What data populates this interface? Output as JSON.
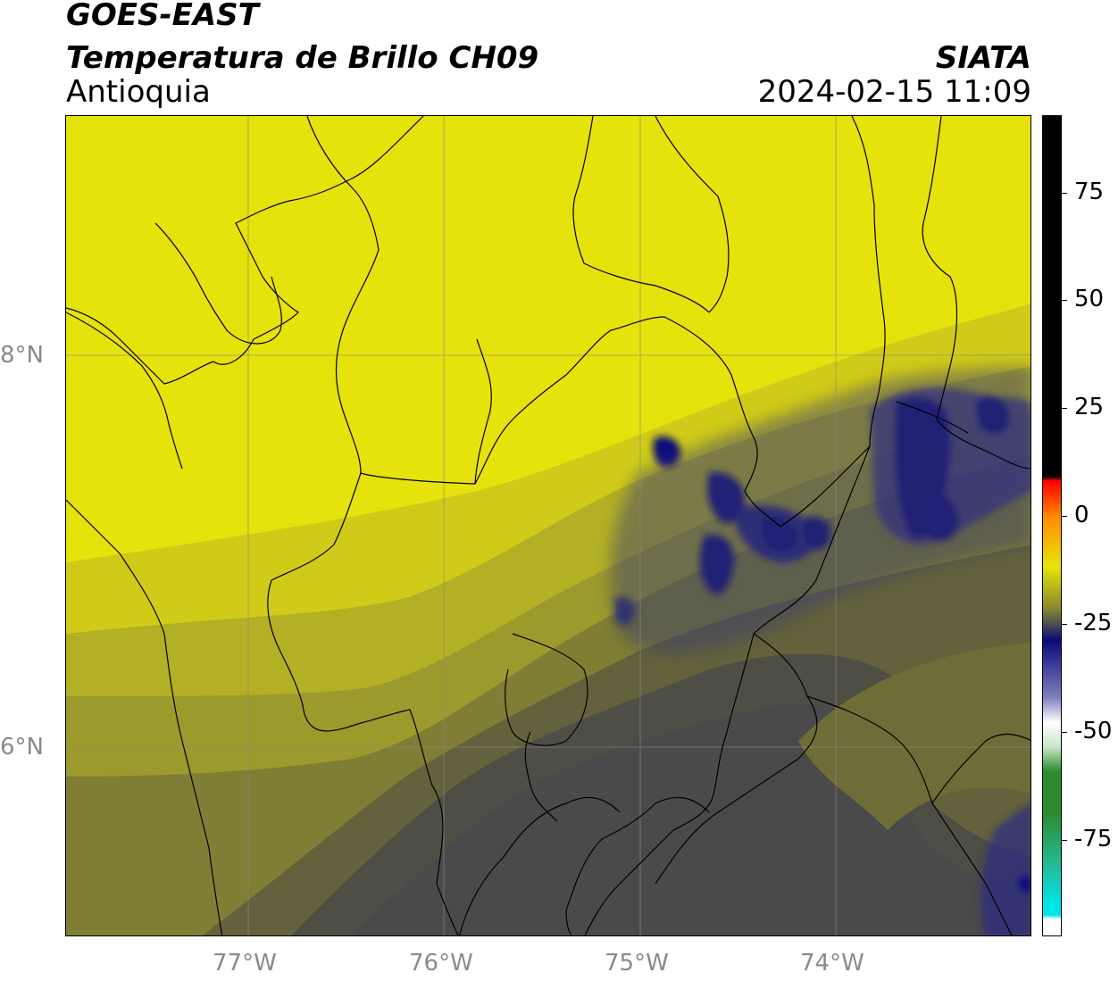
{
  "header": {
    "satellite": "GOES-EAST",
    "product": "Temperatura de Brillo CH09",
    "region": "Antioquia",
    "agency": "SIATA",
    "datetime": "2024-02-15 11:09"
  },
  "map": {
    "lon_ticks": [
      "77°W",
      "76°W",
      "75°W",
      "74°W"
    ],
    "lat_ticks": [
      "8°N",
      "6°N"
    ],
    "lon_range": [
      -77.93,
      -73.0
    ],
    "lat_range": [
      5.05,
      9.25
    ]
  },
  "colorbar": {
    "ticks": [
      "75",
      "50",
      "25",
      "0",
      "-25",
      "-50",
      "-75"
    ],
    "range": [
      -95,
      92
    ],
    "colors": {
      "warm": "#e8e40a",
      "mid": "#8a8a2e",
      "cold_gray": "#4d4d4d",
      "deep_cold": "#0a0a7a",
      "black": "#000000",
      "red": "#ff0000",
      "orange": "#ff8c00",
      "green": "#2e8b2e",
      "cyan": "#00e5e5"
    }
  }
}
